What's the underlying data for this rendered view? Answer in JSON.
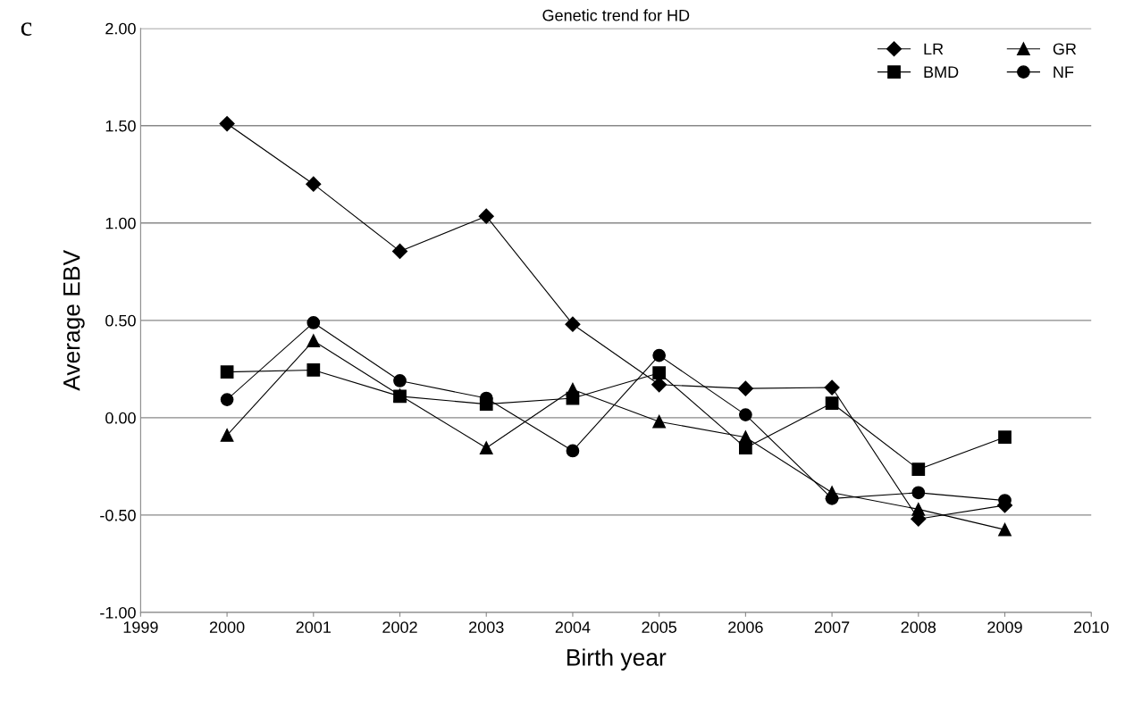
{
  "chart_data": {
    "type": "line",
    "title": "Genetic trend for HD",
    "xlabel": "Birth year",
    "ylabel": "Average EBV",
    "annotations": [
      "c"
    ],
    "x": [
      2000,
      2001,
      2002,
      2003,
      2004,
      2005,
      2006,
      2007,
      2008,
      2009
    ],
    "series": [
      {
        "name": "LR",
        "color": "#000000",
        "marker": "diamond",
        "values": [
          1.51,
          1.2,
          0.855,
          1.035,
          0.48,
          0.17,
          0.15,
          0.155,
          -0.52,
          -0.45
        ]
      },
      {
        "name": "BMD",
        "color": "#000000",
        "marker": "square",
        "values": [
          0.235,
          0.245,
          0.11,
          0.07,
          0.1,
          0.23,
          -0.155,
          0.075,
          -0.265,
          -0.1
        ]
      },
      {
        "name": "GR",
        "color": "#000000",
        "marker": "triangle",
        "values": [
          -0.09,
          0.395,
          0.115,
          -0.155,
          0.145,
          -0.02,
          -0.1,
          -0.385,
          -0.47,
          -0.575
        ]
      },
      {
        "name": "NF",
        "color": "#000000",
        "marker": "circle",
        "values": [
          0.093,
          0.488,
          0.19,
          0.1,
          -0.17,
          0.32,
          0.015,
          -0.415,
          -0.385,
          -0.425
        ]
      }
    ],
    "xlim": [
      1999,
      2010
    ],
    "xticks": [
      1999,
      2000,
      2001,
      2002,
      2003,
      2004,
      2005,
      2006,
      2007,
      2008,
      2009,
      2010
    ],
    "ylim": [
      -1.0,
      2.0
    ],
    "yticks": [
      {
        "value": -1.0,
        "label": "-1.00"
      },
      {
        "value": -0.5,
        "label": "-0.50"
      },
      {
        "value": 0,
        "label": "0.00"
      },
      {
        "value": 0.5,
        "label": "0.50"
      },
      {
        "value": 1.0,
        "label": "1.00"
      },
      {
        "value": 1.5,
        "label": "1.50"
      },
      {
        "value": 2.0,
        "label": "2.00"
      }
    ],
    "grid": "y",
    "legend": "top right",
    "line_style": "solid"
  }
}
